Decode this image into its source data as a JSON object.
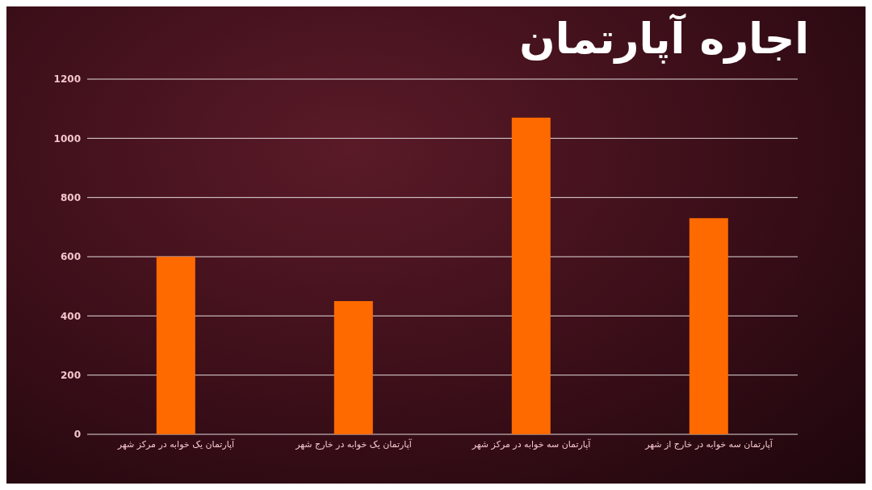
{
  "chart_data": {
    "type": "bar",
    "title": "اجاره آپارتمان",
    "categories": [
      "آپارتمان یک خوابه در مرکز شهر",
      "آپارتمان یک خوابه در خارج شهر",
      "آپارتمان سه خوابه در مرکز شهر",
      "آپارتمان سه خوابه در خارج از شهر"
    ],
    "values": [
      600,
      450,
      1070,
      730
    ],
    "color": "#ff6a00",
    "ylim": [
      0,
      1200
    ],
    "yticks": [
      0,
      200,
      400,
      600,
      800,
      1000,
      1200
    ],
    "grid": "y",
    "legend": false
  }
}
